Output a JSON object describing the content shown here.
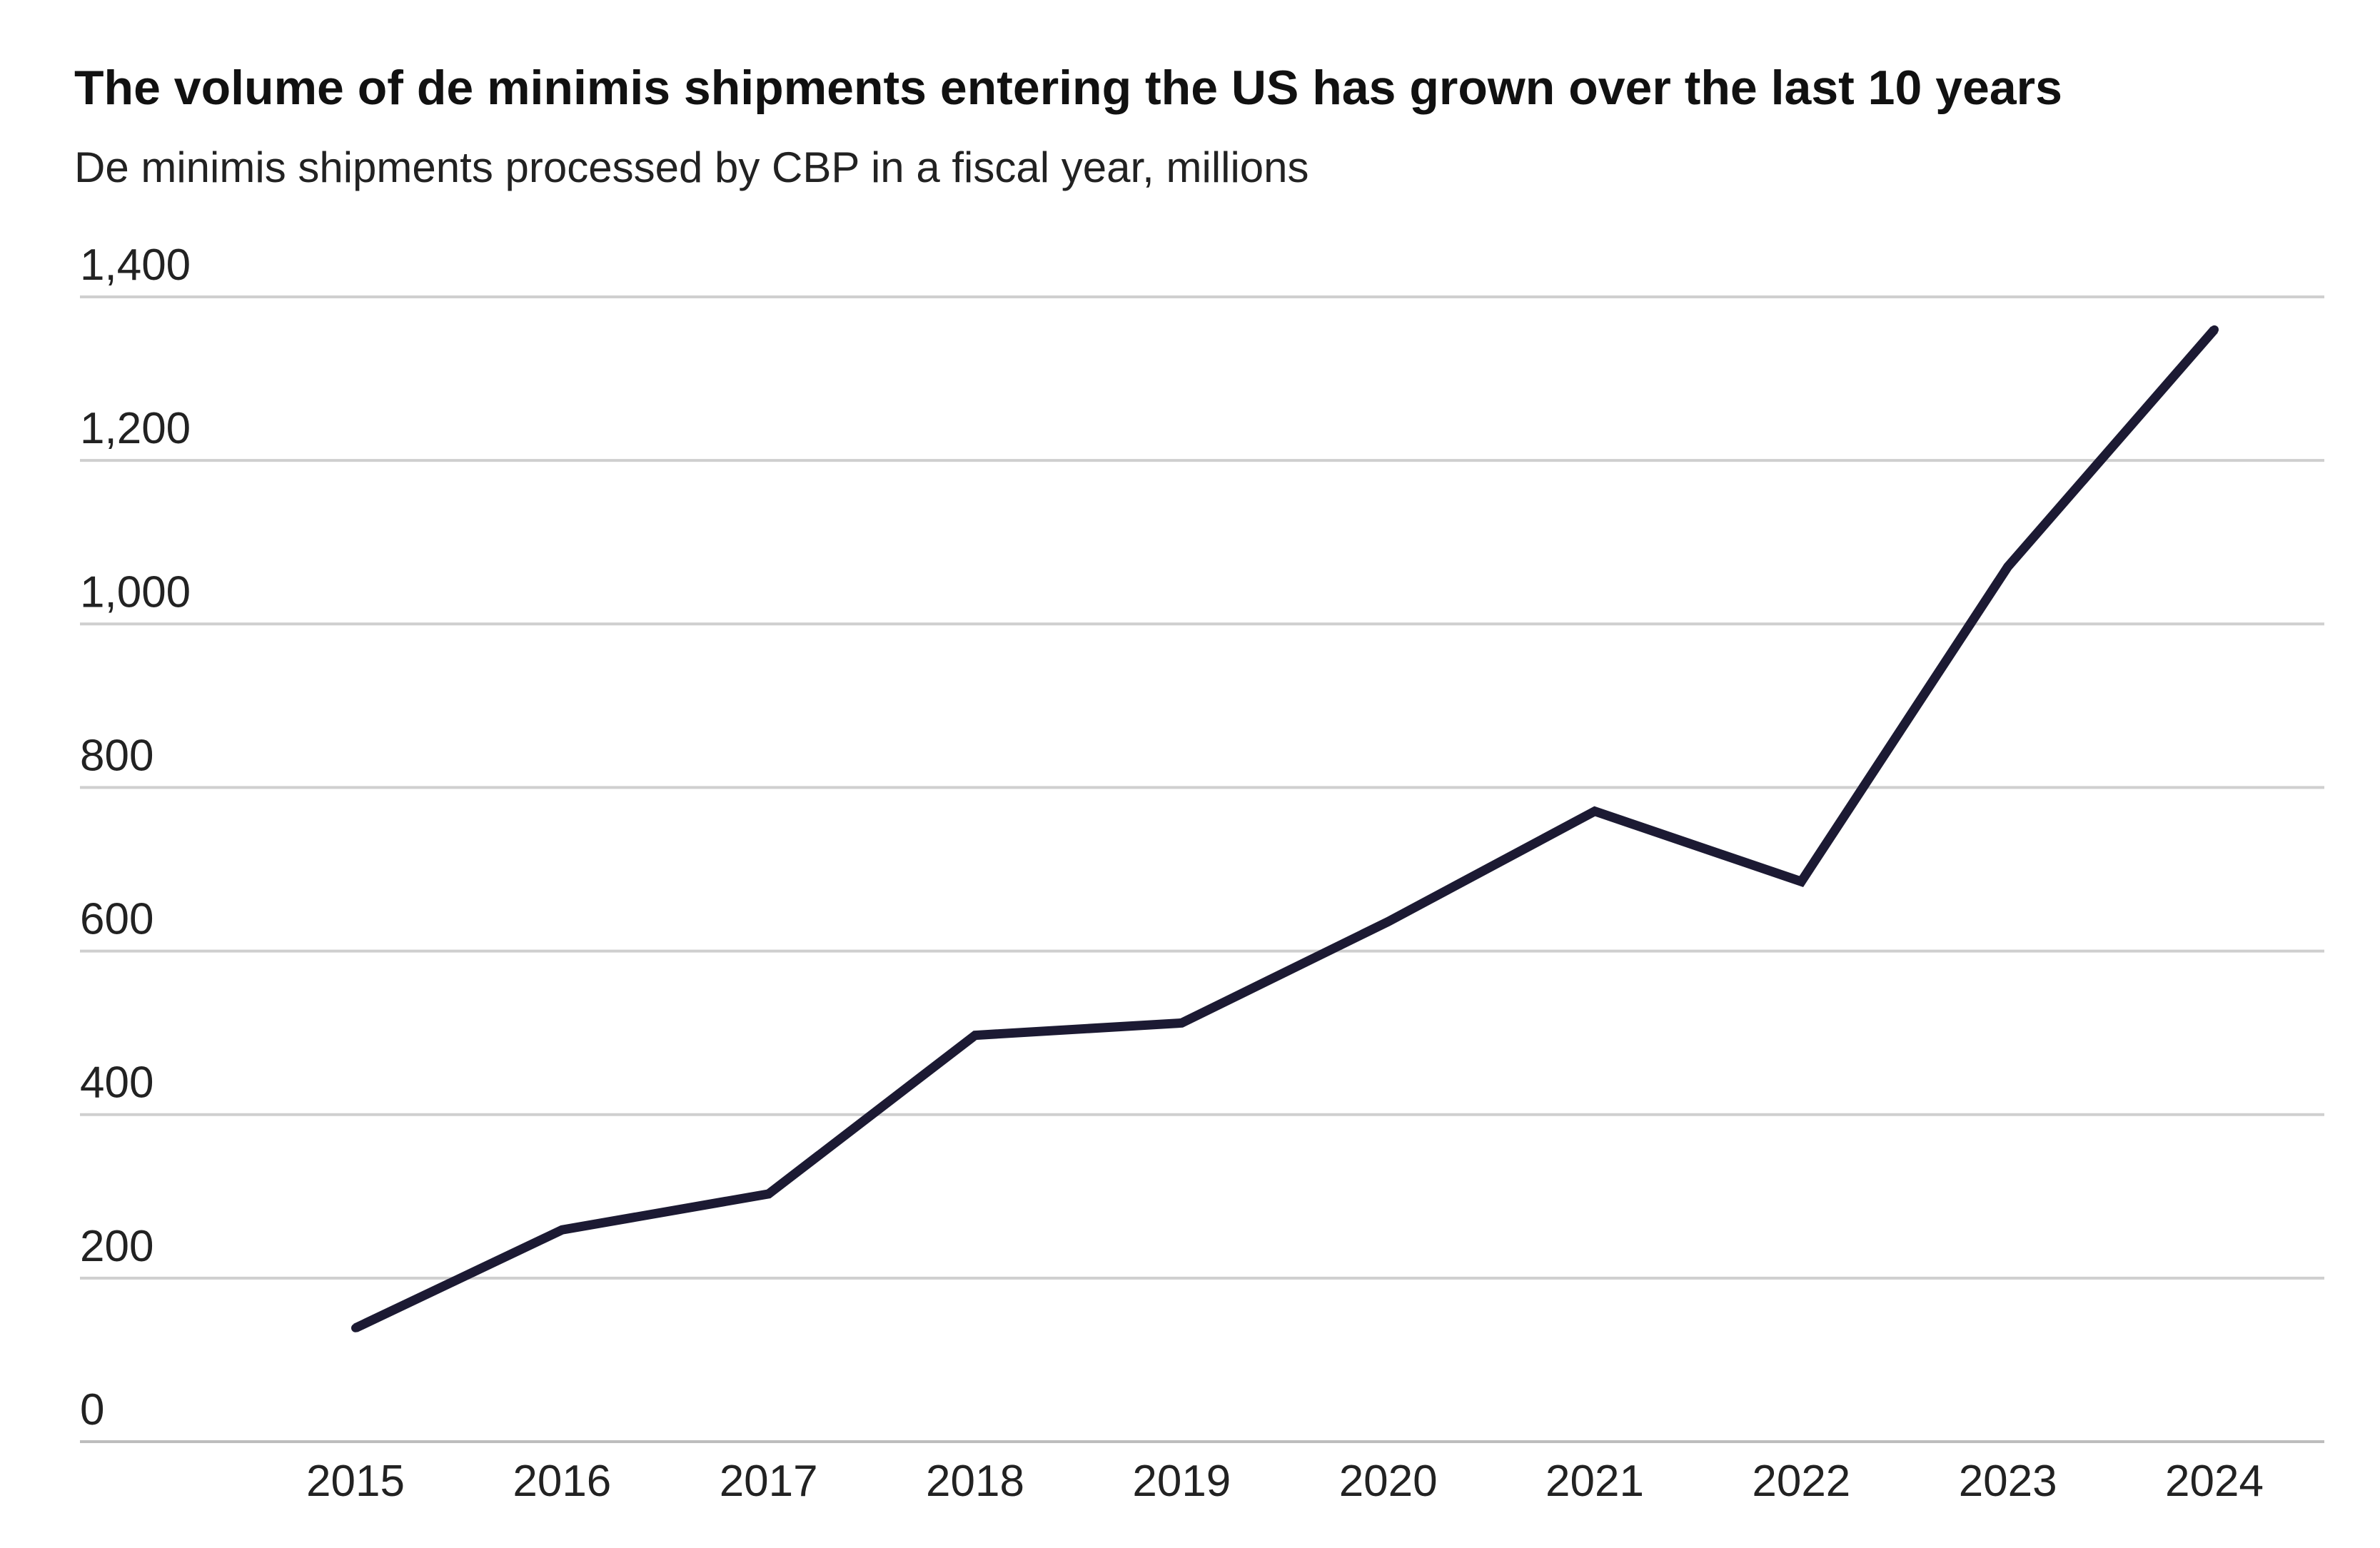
{
  "chart_data": {
    "type": "line",
    "title": "The volume of de minimis shipments entering the US has grown over the last 10 years",
    "subtitle": "De minimis shipments processed by CBP in a fiscal year, millions",
    "xlabel": "",
    "ylabel": "",
    "categories": [
      "2015",
      "2016",
      "2017",
      "2018",
      "2019",
      "2020",
      "2021",
      "2022",
      "2023",
      "2024"
    ],
    "series": [
      {
        "name": "De minimis shipments (millions)",
        "values": [
          139,
          259,
          303,
          497,
          512,
          636,
          771,
          685,
          1070,
          1360
        ],
        "color": "#1c1a33"
      }
    ],
    "ylim": [
      0,
      1400
    ],
    "yticks": [
      0,
      200,
      400,
      600,
      800,
      1000,
      1200,
      1400
    ],
    "ytick_labels": [
      "0",
      "200",
      "400",
      "600",
      "800",
      "1,000",
      "1,200",
      "1,400"
    ],
    "grid": true,
    "legend": "none"
  },
  "colors": {
    "line": "#1c1a33",
    "grid": "#cfcfcf",
    "baseline": "#bdbdbd",
    "text": "#222222"
  }
}
